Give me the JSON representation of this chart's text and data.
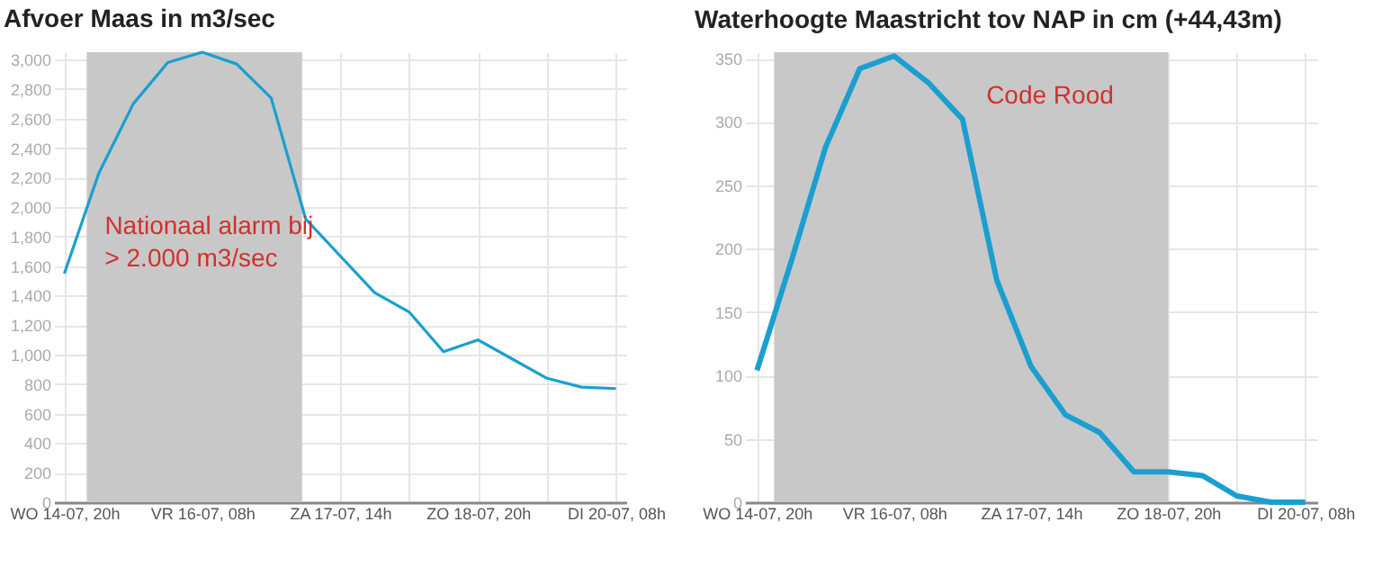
{
  "chart_data": [
    {
      "type": "line",
      "title": "Afvoer Maas in m3/sec",
      "categories": [
        "WO 14-07, 20h",
        null,
        null,
        null,
        "VR 16-07, 08h",
        null,
        null,
        null,
        "ZA 17-07, 14h",
        null,
        null,
        null,
        "ZO 18-07, 20h",
        null,
        null,
        null,
        "DI 20-07, 08h"
      ],
      "series": [
        {
          "color": "#1a9fd0",
          "values": [
            1550,
            2230,
            2700,
            2980,
            3050,
            2970,
            2740,
            1920,
            1670,
            1420,
            1290,
            1020,
            1100,
            970,
            840,
            780,
            770
          ]
        }
      ],
      "ylim": [
        0,
        3050
      ],
      "yticks": [
        0,
        200,
        400,
        600,
        800,
        {
          "value": 1000,
          "label": "1,000"
        },
        {
          "value": 1200,
          "label": "1,200"
        },
        {
          "value": 1400,
          "label": "1,400"
        },
        {
          "value": 1600,
          "label": "1,600"
        },
        {
          "value": 1800,
          "label": "1,800"
        },
        {
          "value": 2000,
          "label": "2,000"
        },
        {
          "value": 2200,
          "label": "2,200"
        },
        {
          "value": 2400,
          "label": "2,400"
        },
        {
          "value": 2600,
          "label": "2,600"
        },
        {
          "value": 2800,
          "label": "2,800"
        },
        {
          "value": 3000,
          "label": "3,000"
        }
      ],
      "annotations": [
        "Nationaal alarm bij\n> 2.000 m3/sec"
      ],
      "grid": true
    },
    {
      "type": "line",
      "title": "Waterhoogte Maastricht tov NAP in cm (+44,43m)",
      "categories": [
        "WO 14-07, 20h",
        null,
        null,
        null,
        "VR 16-07, 08h",
        null,
        null,
        null,
        "ZA 17-07, 14h",
        null,
        null,
        null,
        "ZO 18-07, 20h",
        null,
        null,
        null,
        "DI 20-07, 08h"
      ],
      "series": [
        {
          "color": "#1a9fd0",
          "values": [
            104,
            190,
            280,
            342,
            352,
            331,
            302,
            175,
            107,
            69,
            55,
            24,
            24,
            21,
            5,
            0,
            0
          ]
        }
      ],
      "ylim": [
        0,
        355
      ],
      "yticks": [
        0,
        50,
        100,
        150,
        200,
        250,
        300,
        350
      ],
      "annotations": [
        "Code Rood"
      ],
      "grid": true
    }
  ]
}
